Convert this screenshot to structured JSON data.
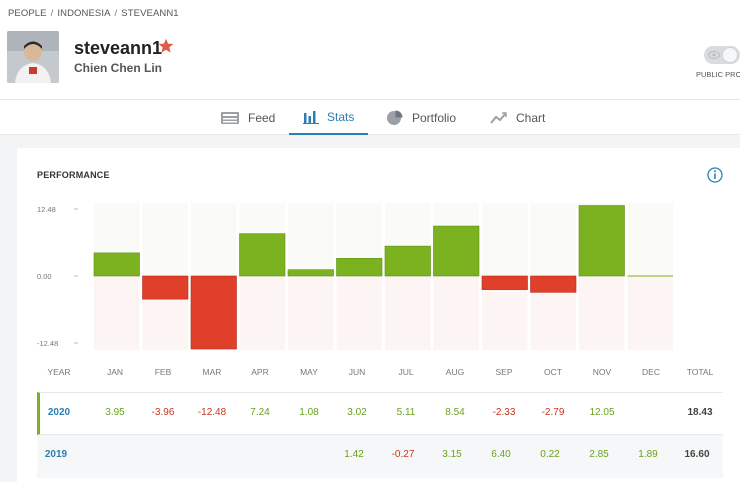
{
  "breadcrumb": [
    "PEOPLE",
    "INDONESIA",
    "STEVEANN1"
  ],
  "profile": {
    "username": "steveann1",
    "real_name": "Chien Chen Lin",
    "avatar_icon": "user-photo",
    "favorite_icon": "star-icon"
  },
  "public_profile": {
    "label": "PUBLIC PROFI",
    "enabled": true
  },
  "tabs": [
    {
      "label": "Feed",
      "icon": "feed-icon",
      "active": false
    },
    {
      "label": "Stats",
      "icon": "bar-chart-icon",
      "active": true
    },
    {
      "label": "Portfolio",
      "icon": "pie-chart-icon",
      "active": false
    },
    {
      "label": "Chart",
      "icon": "line-chart-icon",
      "active": false
    }
  ],
  "performance": {
    "title": "PERFORMANCE",
    "info_icon": "info-icon"
  },
  "chart_data": {
    "type": "bar",
    "categories": [
      "JAN",
      "FEB",
      "MAR",
      "APR",
      "MAY",
      "JUN",
      "JUL",
      "AUG",
      "SEP",
      "OCT",
      "NOV",
      "DEC"
    ],
    "values": [
      3.95,
      -3.96,
      -12.48,
      7.24,
      1.08,
      3.02,
      5.11,
      8.54,
      -2.33,
      -2.79,
      12.05,
      0
    ],
    "ytick_labels": [
      "12.48",
      "0.00",
      "-12.48"
    ],
    "ylim": [
      -12.48,
      12.48
    ],
    "positive_color": "#7cb21f",
    "negative_color": "#e0402a"
  },
  "table": {
    "headers": [
      "YEAR",
      "JAN",
      "FEB",
      "MAR",
      "APR",
      "MAY",
      "JUN",
      "JUL",
      "AUG",
      "SEP",
      "OCT",
      "NOV",
      "DEC",
      "TOTAL"
    ],
    "rows": [
      {
        "year": "2020",
        "cells": [
          "3.95",
          "-3.96",
          "-12.48",
          "7.24",
          "1.08",
          "3.02",
          "5.11",
          "8.54",
          "-2.33",
          "-2.79",
          "12.05",
          "",
          "18.43"
        ]
      },
      {
        "year": "2019",
        "cells": [
          "",
          "",
          "",
          "",
          "",
          "1.42",
          "-0.27",
          "3.15",
          "6.40",
          "0.22",
          "2.85",
          "1.89",
          "16.60"
        ]
      }
    ]
  },
  "colors": {
    "accent": "#2b7fb1",
    "positive": "#6aa21a",
    "negative": "#c8341f"
  }
}
